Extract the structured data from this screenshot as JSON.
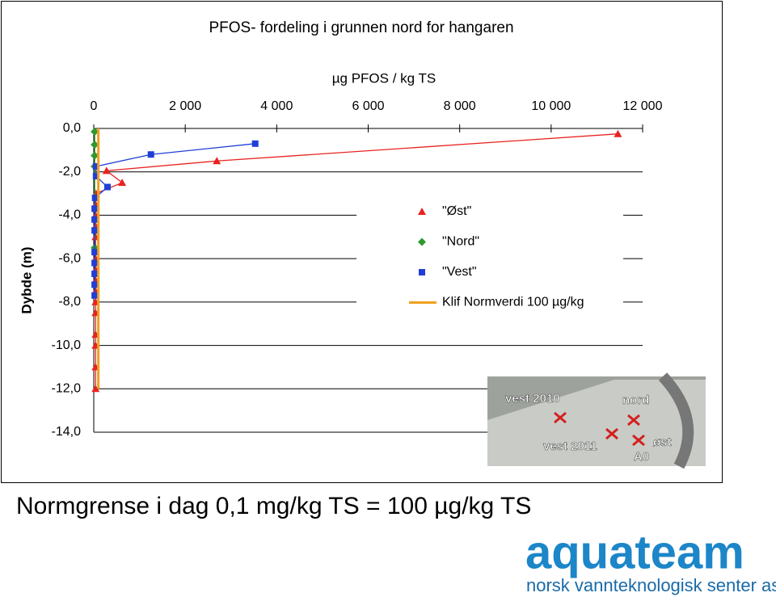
{
  "chart_data": {
    "type": "scatter",
    "title": "PFOS- fordeling i grunnen nord for hangaren",
    "x_label": "µg PFOS / kg TS",
    "y_label": "Dybde (m)",
    "xlim": [
      0,
      12000
    ],
    "xticks": [
      0,
      {
        "value": 2000,
        "label": "2 000"
      },
      {
        "value": 4000,
        "label": "4 000"
      },
      {
        "value": 6000,
        "label": "6 000"
      },
      {
        "value": 8000,
        "label": "8 000"
      },
      {
        "value": 10000,
        "label": "10 000"
      },
      {
        "value": 12000,
        "label": "12 000"
      }
    ],
    "ylim": [
      -14,
      0
    ],
    "yticks": [
      {
        "value": 0,
        "label": "0,0"
      },
      {
        "value": -2,
        "label": "-2,0"
      },
      {
        "value": -4,
        "label": "-4,0"
      },
      {
        "value": -6,
        "label": "-6,0"
      },
      {
        "value": -8,
        "label": "-8,0"
      },
      {
        "value": -10,
        "label": "-10,0"
      },
      {
        "value": -12,
        "label": "-12,0"
      },
      {
        "value": -14,
        "label": "-14,0"
      }
    ],
    "grid": true,
    "series": [
      {
        "name": "\"Øst\"",
        "color": "#e8231f",
        "marker": "triangle",
        "line": true,
        "x": [
          11460,
          2690,
          280,
          620,
          50,
          40,
          40,
          40,
          40,
          40,
          40,
          40,
          40,
          40,
          40,
          40,
          40,
          40,
          40,
          40
        ],
        "values": [
          -0.25,
          -1.5,
          -1.95,
          -2.5,
          -3.0,
          -3.5,
          -4.0,
          -4.5,
          -5.0,
          -5.5,
          -6.0,
          -6.5,
          -7.0,
          -7.5,
          -8.0,
          -8.5,
          -9.5,
          -10.0,
          -11.0,
          -12.0
        ]
      },
      {
        "name": "\"Nord\"",
        "color": "#2e9a2e",
        "marker": "diamond",
        "line": true,
        "x": [
          20,
          20,
          20,
          20,
          20
        ],
        "values": [
          -0.15,
          -0.75,
          -1.25,
          -1.75,
          -5.5
        ]
      },
      {
        "name": "\"Vest\"",
        "color": "#1f3fd6",
        "marker": "square",
        "line": true,
        "x": [
          3530,
          1250,
          50,
          50,
          300,
          30,
          20,
          20,
          20,
          20,
          20,
          20,
          20,
          20
        ],
        "values": [
          -0.7,
          -1.2,
          -1.75,
          -2.2,
          -2.7,
          -3.2,
          -3.7,
          -4.2,
          -4.7,
          -5.7,
          -6.2,
          -6.7,
          -7.2,
          -7.7
        ]
      },
      {
        "name": "Klif Normverdi 100 µg/kg",
        "color": "#f0a020",
        "marker": "none",
        "line": true,
        "x": [
          100,
          100
        ],
        "values": [
          0,
          -12
        ]
      }
    ]
  },
  "photo_labels": [
    "vest 2010",
    "nord",
    "vest 2011",
    "øst",
    "A0"
  ],
  "footer": "Normgrense i dag 0,1 mg/kg TS = 100 µg/kg TS",
  "logo": {
    "name": "aquateam",
    "tagline": "norsk vannteknologisk senter as"
  }
}
